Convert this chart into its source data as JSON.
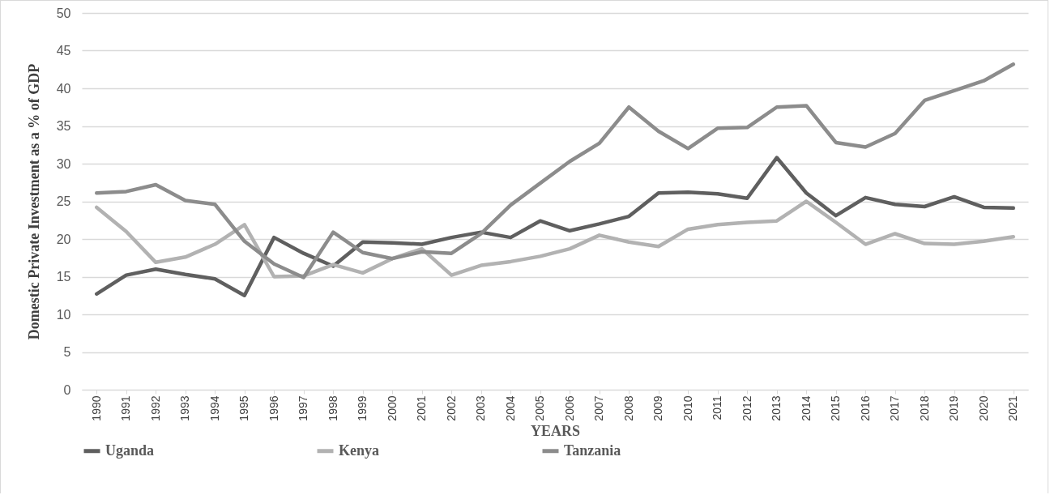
{
  "chart_data": {
    "type": "line",
    "xlabel": "YEARS",
    "ylabel": "Domestic Private Investment as a % of GDP",
    "categories": [
      "1990",
      "1991",
      "1992",
      "1993",
      "1994",
      "1995",
      "1996",
      "1997",
      "1998",
      "1999",
      "2000",
      "2001",
      "2002",
      "2003",
      "2004",
      "2005",
      "2006",
      "2007",
      "2008",
      "2009",
      "2010",
      "2011",
      "2012",
      "2013",
      "2014",
      "2015",
      "2016",
      "2017",
      "2018",
      "2019",
      "2020",
      "2021"
    ],
    "series": [
      {
        "name": "Uganda",
        "color": "#5f5f5f",
        "values": [
          12.7,
          15.2,
          16.0,
          15.3,
          14.7,
          12.5,
          20.2,
          18.1,
          16.4,
          19.6,
          19.5,
          19.3,
          20.2,
          20.9,
          20.2,
          22.4,
          21.1,
          22.0,
          23.0,
          26.1,
          26.2,
          26.0,
          25.4,
          30.8,
          26.1,
          23.1,
          25.5,
          24.6,
          24.3,
          25.6,
          24.2,
          24.1
        ]
      },
      {
        "name": "Kenya",
        "color": "#b2b2b2",
        "values": [
          24.2,
          21.0,
          16.9,
          17.6,
          19.3,
          21.9,
          15.0,
          15.1,
          16.6,
          15.5,
          17.4,
          18.7,
          15.2,
          16.5,
          17.0,
          17.7,
          18.7,
          20.5,
          19.6,
          19.0,
          21.3,
          21.9,
          22.2,
          22.4,
          25.0,
          22.2,
          19.3,
          20.7,
          19.4,
          19.3,
          19.7,
          20.3
        ]
      },
      {
        "name": "Tanzania",
        "color": "#8c8c8c",
        "values": [
          26.1,
          26.3,
          27.2,
          25.1,
          24.6,
          19.7,
          16.7,
          14.9,
          20.9,
          18.2,
          17.4,
          18.3,
          18.1,
          20.7,
          24.5,
          27.4,
          30.3,
          32.7,
          37.5,
          34.3,
          32.0,
          34.7,
          34.8,
          37.5,
          37.7,
          32.8,
          32.2,
          34.0,
          38.4,
          39.7,
          41.0,
          43.2
        ]
      }
    ],
    "ylim": [
      0,
      50
    ],
    "yticks": [
      0,
      5,
      10,
      15,
      20,
      25,
      30,
      35,
      40,
      45,
      50
    ],
    "grid": "y",
    "legend": "bottom",
    "line_style": "solid"
  }
}
